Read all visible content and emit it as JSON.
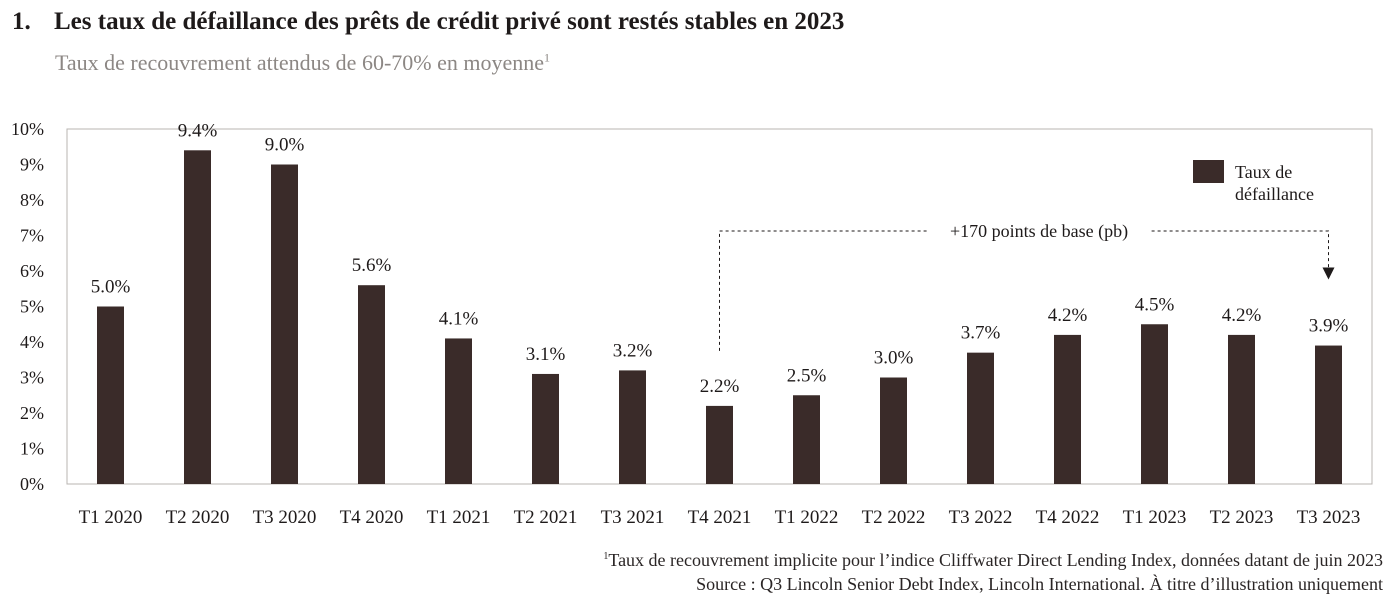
{
  "header": {
    "number": "1.",
    "title": "Les taux de défaillance des prêts de crédit privé sont restés stables en 2023",
    "subtitle": "Taux de recouvrement attendus de 60-70% en moyenne",
    "subtitle_sup": "1"
  },
  "chart_data": {
    "type": "bar",
    "categories": [
      "T1 2020",
      "T2 2020",
      "T3 2020",
      "T4 2020",
      "T1 2021",
      "T2 2021",
      "T3 2021",
      "T4 2021",
      "T1 2022",
      "T2 2022",
      "T3 2022",
      "T4 2022",
      "T1 2023",
      "T2 2023",
      "T3 2023"
    ],
    "values": [
      5.0,
      9.4,
      9.0,
      5.6,
      4.1,
      3.1,
      3.2,
      2.2,
      2.5,
      3.0,
      3.7,
      4.2,
      4.5,
      4.2,
      3.9
    ],
    "data_labels": [
      "5.0%",
      "9.4%",
      "9.0%",
      "5.6%",
      "4.1%",
      "3.1%",
      "3.2%",
      "2.2%",
      "2.5%",
      "3.0%",
      "3.7%",
      "4.2%",
      "4.5%",
      "4.2%",
      "3.9%"
    ],
    "series": [
      {
        "name": "Taux de défaillance",
        "legend_lines": [
          "Taux de",
          "défaillance"
        ],
        "color": "#3a2b29"
      }
    ],
    "ylim": [
      0,
      10
    ],
    "yticks": [
      "0%",
      "1%",
      "2%",
      "3%",
      "4%",
      "5%",
      "6%",
      "7%",
      "8%",
      "9%",
      "10%"
    ],
    "legend_position": "top-right",
    "grid": false,
    "annotation": {
      "text": "+170 points de base (pb)",
      "from_category": "T4 2021",
      "to_category": "T3 2023",
      "style": "dashed bracket with arrow"
    }
  },
  "footer": {
    "note_sup": "1",
    "note": "Taux de recouvrement implicite pour l’indice Cliffwater Direct Lending Index, données datant de juin 2023",
    "source": "Source : Q3 Lincoln Senior Debt Index, Lincoln International. À titre d’illustration uniquement"
  },
  "colors": {
    "bar": "#3a2b29",
    "frame": "#b8b4b2",
    "subtitle": "#8c8784",
    "text": "#1e1a1a"
  }
}
